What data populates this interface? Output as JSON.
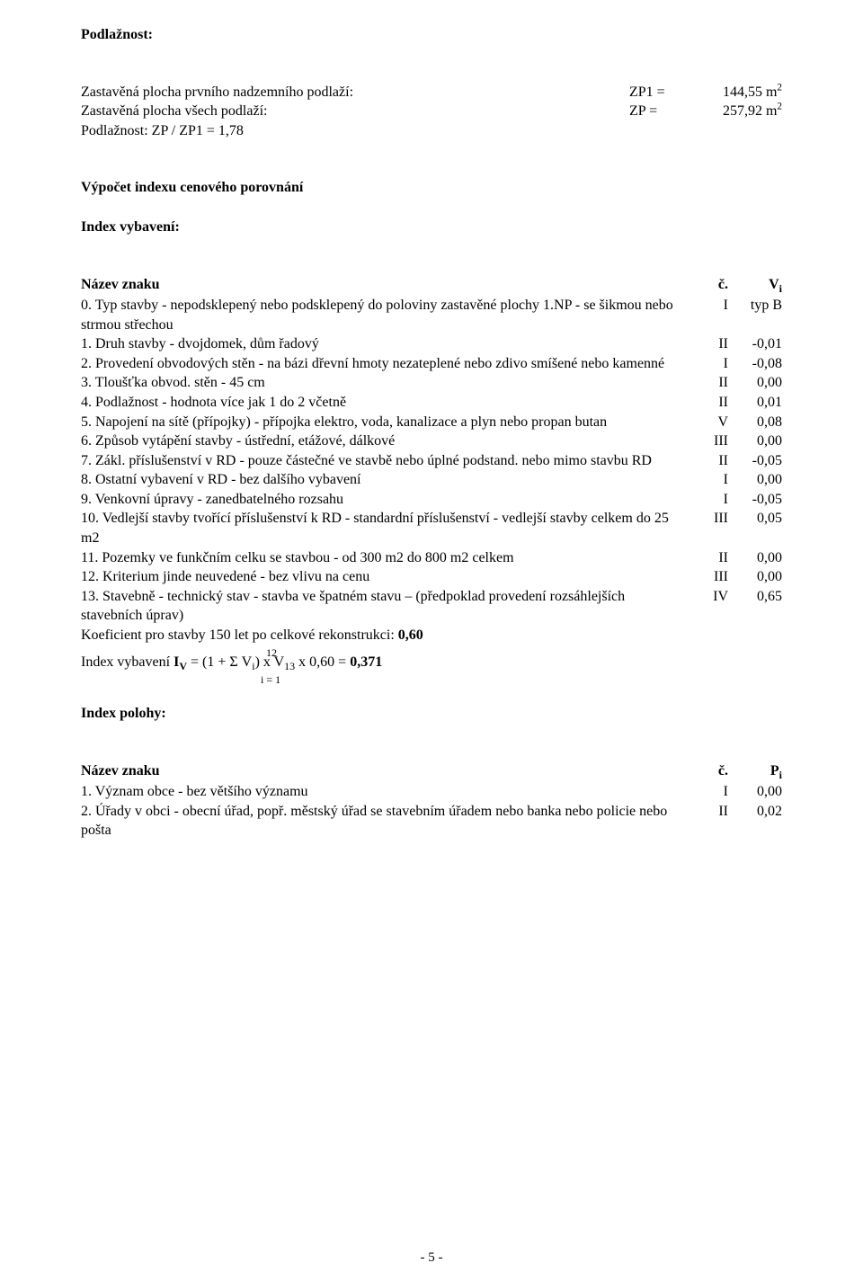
{
  "h1": "Podlažnost:",
  "area_rows": [
    {
      "label": "Zastavěná plocha prvního nadzemního podlaží:",
      "mid": "ZP1  =",
      "val": "144,55 m",
      "sup": "2"
    },
    {
      "label": "Zastavěná plocha všech podlaží:",
      "mid": "ZP   =",
      "val": "257,92 m",
      "sup": "2"
    }
  ],
  "podl_line": "Podlažnost:       ZP / ZP1 = 1,78",
  "h2": "Výpočet indexu cenového porovnání",
  "h3": "Index vybavení:",
  "header1": {
    "c1": "Název znaku",
    "c2": "č.",
    "c3_html": "V<sub>i</sub>"
  },
  "items1": [
    {
      "text": "0. Typ stavby - nepodsklepený nebo podsklepený do poloviny zastavěné plochy 1.NP - se šikmou nebo strmou střechou",
      "c2": "I",
      "c3": "typ B"
    },
    {
      "text": "1. Druh stavby - dvojdomek, dům řadový",
      "c2": "II",
      "c3": "-0,01"
    },
    {
      "text": "2. Provedení obvodových stěn - na bázi dřevní hmoty nezateplené nebo zdivo smíšené nebo kamenné",
      "c2": "I",
      "c3": "-0,08"
    },
    {
      "text": "3. Tloušťka obvod. stěn - 45 cm",
      "c2": "II",
      "c3": "0,00"
    },
    {
      "text": "4. Podlažnost - hodnota více jak 1 do 2 včetně",
      "c2": "II",
      "c3": "0,01"
    },
    {
      "text": "5. Napojení na sítě (přípojky) - přípojka elektro, voda, kanalizace a plyn nebo propan butan",
      "c2": "V",
      "c3": "0,08"
    },
    {
      "text": "6. Způsob vytápění stavby - ústřední, etážové, dálkové",
      "c2": "III",
      "c3": "0,00"
    },
    {
      "text": "7. Zákl. příslušenství v RD - pouze částečné ve stavbě nebo úplné podstand. nebo mimo stavbu RD",
      "c2": "II",
      "c3": "-0,05"
    },
    {
      "text": "8. Ostatní vybavení v RD - bez dalšího vybavení",
      "c2": "I",
      "c3": "0,00"
    },
    {
      "text": "9. Venkovní úpravy - zanedbatelného rozsahu",
      "c2": "I",
      "c3": "-0,05"
    },
    {
      "text": "10. Vedlejší stavby tvořící příslušenství k RD - standardní příslušenství - vedlejší stavby celkem do 25 m2",
      "c2": "III",
      "c3": "0,05"
    },
    {
      "text": "11. Pozemky ve funkčním celku se stavbou - od 300 m2 do 800 m2 celkem",
      "c2": "II",
      "c3": "0,00"
    },
    {
      "text": "12. Kriterium jinde neuvedené - bez vlivu na cenu",
      "c2": "III",
      "c3": "0,00"
    },
    {
      "text": "13. Stavebně - technický stav - stavba ve špatném stavu – (předpoklad provedení rozsáhlejších stavebních úprav)",
      "c2": "IV",
      "c3": "0,65"
    }
  ],
  "koef_pre": "Koeficient pro stavby 150 let po celkové rekonstrukci: ",
  "koef_val": "0,60",
  "sum_top": "12",
  "sum_bot": "i = 1",
  "formula_html": "Index vybavení <b>I<sub>V</sub></b> = (1 + Σ V<sub>i</sub>) x V<sub>13</sub> x 0,60 = <b>0,371</b>",
  "h4": "Index polohy:",
  "header2": {
    "c1": "Název znaku",
    "c2": "č.",
    "c3_html": "P<sub>i</sub>"
  },
  "items2": [
    {
      "text": "1. Význam obce - bez většího významu",
      "c2": "I",
      "c3": "0,00"
    },
    {
      "text": "2. Úřady v obci - obecní úřad, popř. městský úřad se stavebním úřadem nebo banka nebo policie nebo pošta",
      "c2": "II",
      "c3": "0,02"
    }
  ],
  "page_num": "- 5 -"
}
